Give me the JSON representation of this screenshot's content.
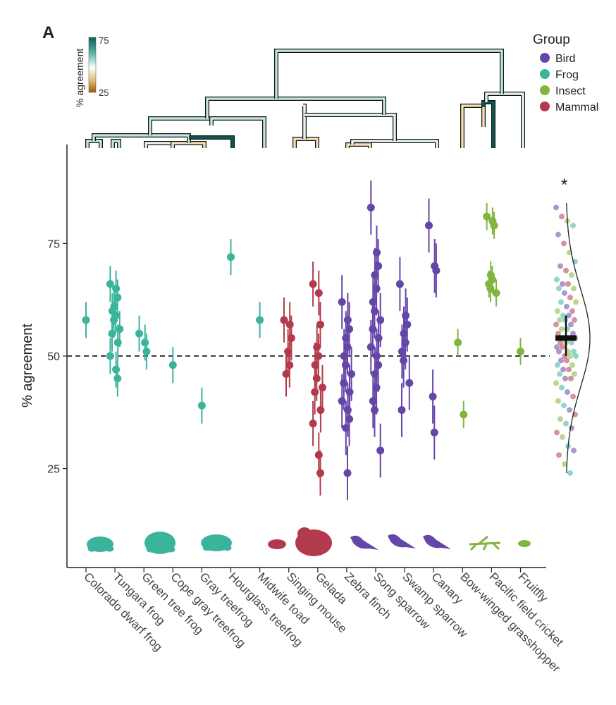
{
  "panel_label": "A",
  "colorbar": {
    "title": "% agreement",
    "max_label": "75",
    "min_label": "25",
    "colors": [
      "#0b5d53",
      "#5fb8ac",
      "#ffffff",
      "#e0b66c",
      "#9a5a06"
    ]
  },
  "legend": {
    "title": "Group",
    "items": [
      {
        "label": "Bird",
        "color": "#6446a8"
      },
      {
        "label": "Frog",
        "color": "#3bb49b"
      },
      {
        "label": "Insect",
        "color": "#82b440"
      },
      {
        "label": "Mammal",
        "color": "#b33a4c"
      }
    ]
  },
  "significance_marker": "*",
  "chart_data": {
    "type": "scatter",
    "title": "",
    "xlabel": "",
    "ylabel": "% agreement",
    "ylim": [
      3,
      97
    ],
    "yticks": [
      25,
      50,
      75
    ],
    "reference_line": 50,
    "categories": [
      {
        "label": "Colorado dwarf frog",
        "group": "Frog",
        "points": [
          [
            58,
            4
          ]
        ]
      },
      {
        "label": "Tungara frog",
        "group": "Frog",
        "points": [
          [
            66,
            4
          ],
          [
            65,
            4
          ],
          [
            63,
            4
          ],
          [
            61,
            4
          ],
          [
            59,
            4
          ],
          [
            60,
            4
          ],
          [
            58,
            4
          ],
          [
            56,
            4
          ],
          [
            55,
            4
          ],
          [
            53,
            4
          ],
          [
            50,
            4
          ],
          [
            47,
            4
          ],
          [
            45,
            4
          ]
        ]
      },
      {
        "label": "Green tree frog",
        "group": "Frog",
        "points": [
          [
            55,
            4
          ],
          [
            53,
            4
          ],
          [
            51,
            4
          ]
        ]
      },
      {
        "label": "Cope gray treefrog",
        "group": "Frog",
        "points": [
          [
            48,
            4
          ]
        ]
      },
      {
        "label": "Gray treefrog",
        "group": "Frog",
        "points": [
          [
            39,
            4
          ]
        ]
      },
      {
        "label": "Hourglass treefrog",
        "group": "Frog",
        "points": [
          [
            72,
            4
          ]
        ]
      },
      {
        "label": "Midwife toad",
        "group": "Frog",
        "points": [
          [
            58,
            4
          ]
        ]
      },
      {
        "label": "Singing mouse",
        "group": "Mammal",
        "points": [
          [
            58,
            5
          ],
          [
            57,
            5
          ],
          [
            54,
            5
          ],
          [
            51,
            5
          ],
          [
            48,
            5
          ],
          [
            46,
            5
          ]
        ]
      },
      {
        "label": "Gelada",
        "group": "Mammal",
        "points": [
          [
            66,
            5
          ],
          [
            64,
            5
          ],
          [
            57,
            5
          ],
          [
            52,
            5
          ],
          [
            50,
            5
          ],
          [
            48,
            5
          ],
          [
            45,
            5
          ],
          [
            43,
            5
          ],
          [
            42,
            5
          ],
          [
            38,
            5
          ],
          [
            35,
            5
          ],
          [
            28,
            5
          ],
          [
            24,
            5
          ]
        ]
      },
      {
        "label": "Zebra finch",
        "group": "Bird",
        "points": [
          [
            62,
            6
          ],
          [
            58,
            6
          ],
          [
            56,
            6
          ],
          [
            54,
            6
          ],
          [
            52,
            6
          ],
          [
            50,
            6
          ],
          [
            48,
            6
          ],
          [
            46,
            6
          ],
          [
            44,
            6
          ],
          [
            42,
            6
          ],
          [
            40,
            6
          ],
          [
            38,
            6
          ],
          [
            36,
            6
          ],
          [
            34,
            6
          ],
          [
            24,
            6
          ]
        ]
      },
      {
        "label": "Song sparrow",
        "group": "Bird",
        "points": [
          [
            83,
            6
          ],
          [
            73,
            6
          ],
          [
            70,
            6
          ],
          [
            68,
            6
          ],
          [
            65,
            6
          ],
          [
            62,
            6
          ],
          [
            60,
            6
          ],
          [
            58,
            6
          ],
          [
            56,
            6
          ],
          [
            54,
            6
          ],
          [
            52,
            6
          ],
          [
            50,
            6
          ],
          [
            48,
            6
          ],
          [
            46,
            6
          ],
          [
            43,
            6
          ],
          [
            40,
            6
          ],
          [
            38,
            6
          ],
          [
            29,
            6
          ]
        ]
      },
      {
        "label": "Swamp sparrow",
        "group": "Bird",
        "points": [
          [
            66,
            6
          ],
          [
            59,
            6
          ],
          [
            57,
            6
          ],
          [
            55,
            6
          ],
          [
            53,
            6
          ],
          [
            51,
            6
          ],
          [
            49,
            6
          ],
          [
            44,
            6
          ],
          [
            38,
            6
          ]
        ]
      },
      {
        "label": "Canary",
        "group": "Bird",
        "points": [
          [
            79,
            6
          ],
          [
            70,
            6
          ],
          [
            69,
            6
          ],
          [
            41,
            6
          ],
          [
            33,
            6
          ]
        ]
      },
      {
        "label": "Bow-winged grasshopper",
        "group": "Insect",
        "points": [
          [
            53,
            3
          ],
          [
            37,
            3
          ]
        ]
      },
      {
        "label": "Pacific field cricket",
        "group": "Insect",
        "points": [
          [
            81,
            3
          ],
          [
            80,
            3
          ],
          [
            79,
            3
          ],
          [
            68,
            3
          ],
          [
            67,
            3
          ],
          [
            66,
            3
          ],
          [
            65,
            3
          ],
          [
            64,
            3
          ]
        ]
      },
      {
        "label": "Fruitfly",
        "group": "Insect",
        "points": [
          [
            51,
            3
          ]
        ]
      }
    ],
    "summary": {
      "mean": 54,
      "ci": [
        50,
        59
      ],
      "jitter_values": [
        83,
        81,
        80,
        79,
        77,
        75,
        73,
        71,
        70,
        69,
        68,
        67,
        66,
        66,
        65,
        65,
        64,
        63,
        62,
        62,
        61,
        60,
        60,
        59,
        59,
        58,
        58,
        58,
        57,
        57,
        56,
        56,
        55,
        55,
        54,
        54,
        54,
        53,
        53,
        53,
        52,
        52,
        51,
        51,
        51,
        50,
        50,
        50,
        49,
        49,
        48,
        48,
        47,
        47,
        46,
        46,
        45,
        45,
        44,
        43,
        42,
        41,
        40,
        39,
        38,
        37,
        36,
        35,
        34,
        33,
        32,
        30,
        29,
        28,
        26,
        24
      ]
    }
  }
}
